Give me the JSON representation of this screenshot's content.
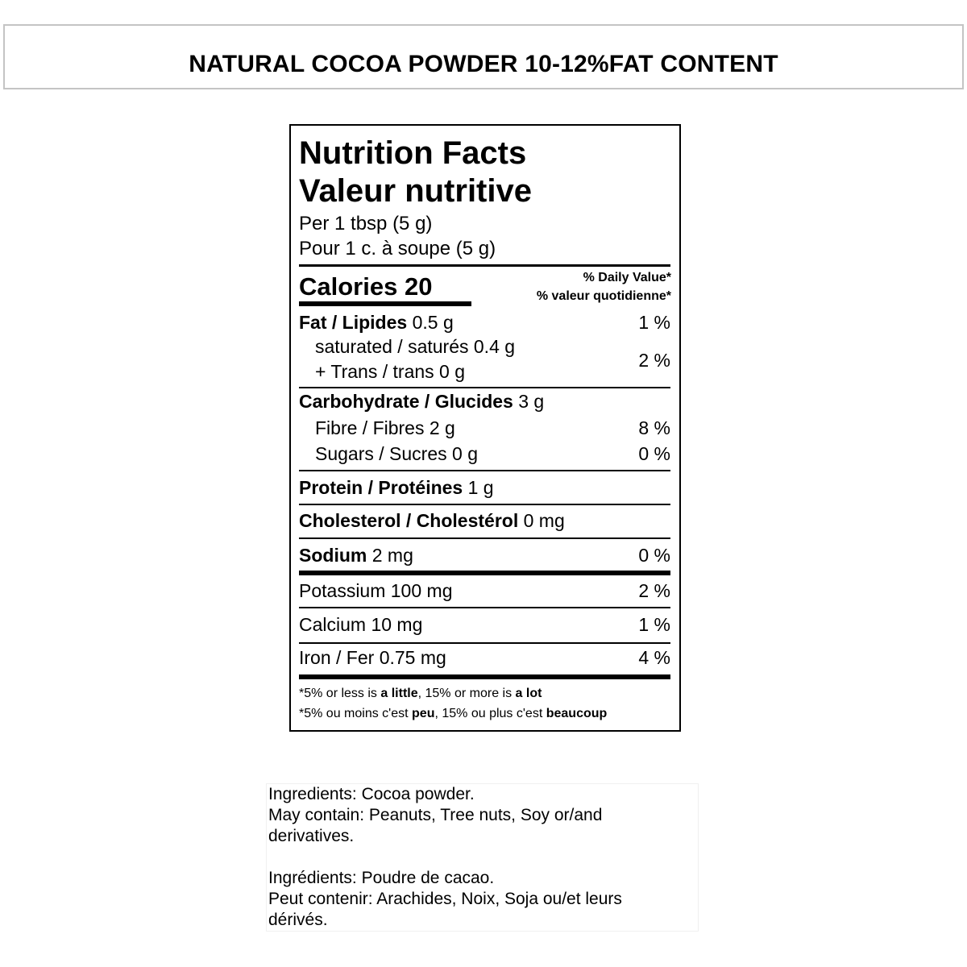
{
  "header": {
    "title": "NATURAL COCOA POWDER 10-12%FAT CONTENT"
  },
  "nutrition": {
    "title_en": "Nutrition Facts",
    "title_fr": "Valeur nutritive",
    "serving_en": "Per 1 tbsp (5 g)",
    "serving_fr": "Pour 1 c. à soupe (5 g)",
    "calories_label": "Calories",
    "calories_value": "20",
    "dv_en": "% Daily Value*",
    "dv_fr": "% valeur quotidienne*",
    "fat": {
      "label": "Fat / Lipides",
      "amount": "0.5 g",
      "dv": "1 %"
    },
    "saturated": {
      "label": "saturated / saturés 0.4 g"
    },
    "trans": {
      "label": "+ Trans / trans 0 g"
    },
    "sat_trans_dv": "2 %",
    "carbohydrate": {
      "label": "Carbohydrate / Glucides",
      "amount": "3 g"
    },
    "fibre": {
      "label": "Fibre / Fibres 2 g",
      "dv": "8 %"
    },
    "sugars": {
      "label": "Sugars / Sucres 0 g",
      "dv": "0 %"
    },
    "protein": {
      "label": "Protein / Protéines",
      "amount": "1 g"
    },
    "cholesterol": {
      "label": "Cholesterol / Cholestérol",
      "amount": "0 mg"
    },
    "sodium": {
      "label": "Sodium",
      "amount": "2 mg",
      "dv": "0 %"
    },
    "potassium": {
      "label": "Potassium 100 mg",
      "dv": "2 %"
    },
    "calcium": {
      "label": "Calcium 10 mg",
      "dv": "1 %"
    },
    "iron": {
      "label": "Iron / Fer 0.75 mg",
      "dv": "4 %"
    },
    "footnote_en": {
      "a": "*5% or less is ",
      "b": "a little",
      "c": ", 15% or more is ",
      "d": "a lot"
    },
    "footnote_fr": {
      "a": "*5% ou moins c'est ",
      "b": "peu",
      "c": ", 15% ou plus c'est ",
      "d": "beaucoup"
    }
  },
  "ingredients": {
    "en_line1": "Ingredients: Cocoa powder.",
    "en_line2": "May contain: Peanuts, Tree nuts, Soy or/and",
    "en_line3": "derivatives.",
    "fr_line1": "Ingrédients: Poudre de cacao.",
    "fr_line2": "Peut contenir: Arachides, Noix, Soja ou/et leurs",
    "fr_line3": "dérivés."
  }
}
